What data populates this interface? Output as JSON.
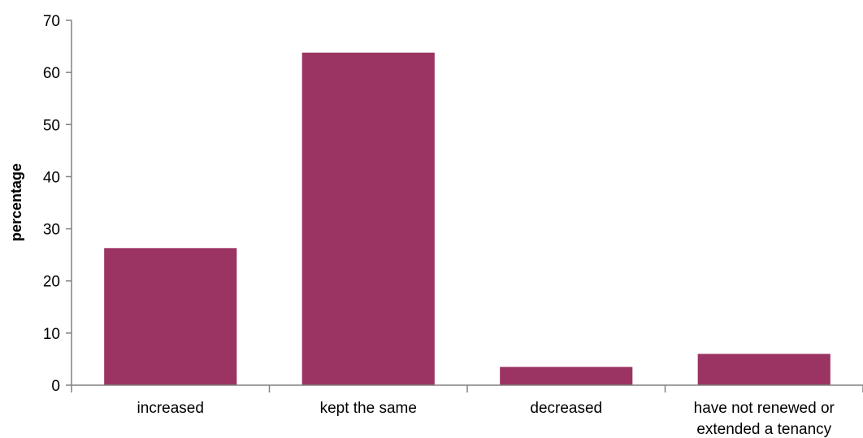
{
  "chart_data": {
    "type": "bar",
    "title": "",
    "xlabel": "",
    "ylabel": "percentage",
    "ylim": [
      0,
      70
    ],
    "yticks": [
      0,
      10,
      20,
      30,
      40,
      50,
      60,
      70
    ],
    "grid": false,
    "legend": "none",
    "categories": [
      [
        "increased"
      ],
      [
        "kept the same"
      ],
      [
        "decreased"
      ],
      [
        "have not renewed or",
        "extended a tenancy"
      ]
    ],
    "values": [
      26.3,
      63.8,
      3.5,
      6.0
    ],
    "bar_color": "#9B3463",
    "axis_color": "#808080"
  }
}
